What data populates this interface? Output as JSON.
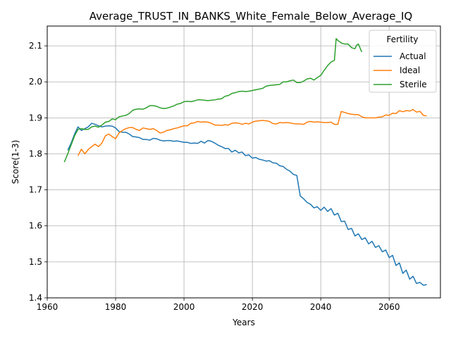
{
  "chart_data": {
    "type": "line",
    "title": "Average_TRUST_IN_BANKS_White_Female_Below_Average_IQ",
    "xlabel": "Years",
    "ylabel": "Score(1-3)",
    "xlim": [
      1960,
      2075
    ],
    "ylim": [
      1.4,
      2.155
    ],
    "xticks": [
      1960,
      1980,
      2000,
      2020,
      2040,
      2060
    ],
    "yticks": [
      1.4,
      1.5,
      1.6,
      1.7,
      1.8,
      1.9,
      2.0,
      2.1
    ],
    "xtick_labels": [
      "1960",
      "1980",
      "2000",
      "2020",
      "2040",
      "2060"
    ],
    "ytick_labels": [
      "1.4",
      "1.5",
      "1.6",
      "1.7",
      "1.8",
      "1.9",
      "2.0",
      "2.1"
    ],
    "grid": true,
    "legend": {
      "title": "Fertility",
      "position": "top-right"
    },
    "series": [
      {
        "name": "Actual",
        "color": "#1f77b4",
        "points": [
          [
            1966,
            1.81
          ],
          [
            1967,
            1.83
          ],
          [
            1968,
            1.855
          ],
          [
            1969,
            1.875
          ],
          [
            1970,
            1.865
          ],
          [
            1971,
            1.87
          ],
          [
            1972,
            1.875
          ],
          [
            1973,
            1.885
          ],
          [
            1974,
            1.882
          ],
          [
            1975,
            1.878
          ],
          [
            1976,
            1.875
          ],
          [
            1977,
            1.877
          ],
          [
            1978,
            1.878
          ],
          [
            1979,
            1.877
          ],
          [
            1980,
            1.872
          ],
          [
            1981,
            1.862
          ],
          [
            1982,
            1.86
          ],
          [
            1983,
            1.86
          ],
          [
            1984,
            1.855
          ],
          [
            1985,
            1.848
          ],
          [
            1986,
            1.847
          ],
          [
            1987,
            1.845
          ],
          [
            1988,
            1.84
          ],
          [
            1989,
            1.84
          ],
          [
            1990,
            1.838
          ],
          [
            1991,
            1.843
          ],
          [
            1992,
            1.842
          ],
          [
            1993,
            1.838
          ],
          [
            1994,
            1.836
          ],
          [
            1995,
            1.837
          ],
          [
            1996,
            1.837
          ],
          [
            1997,
            1.835
          ],
          [
            1998,
            1.836
          ],
          [
            1999,
            1.834
          ],
          [
            2000,
            1.832
          ],
          [
            2001,
            1.832
          ],
          [
            2002,
            1.829
          ],
          [
            2003,
            1.83
          ],
          [
            2004,
            1.829
          ],
          [
            2005,
            1.835
          ],
          [
            2006,
            1.83
          ],
          [
            2007,
            1.837
          ],
          [
            2008,
            1.835
          ],
          [
            2009,
            1.83
          ],
          [
            2010,
            1.824
          ],
          [
            2011,
            1.82
          ],
          [
            2012,
            1.815
          ],
          [
            2013,
            1.815
          ],
          [
            2014,
            1.805
          ],
          [
            2015,
            1.81
          ],
          [
            2016,
            1.803
          ],
          [
            2017,
            1.805
          ],
          [
            2018,
            1.795
          ],
          [
            2019,
            1.797
          ],
          [
            2020,
            1.788
          ],
          [
            2021,
            1.79
          ],
          [
            2022,
            1.785
          ],
          [
            2023,
            1.783
          ],
          [
            2024,
            1.78
          ],
          [
            2025,
            1.781
          ],
          [
            2026,
            1.775
          ],
          [
            2027,
            1.774
          ],
          [
            2028,
            1.767
          ],
          [
            2029,
            1.765
          ],
          [
            2030,
            1.757
          ],
          [
            2031,
            1.752
          ],
          [
            2032,
            1.743
          ],
          [
            2033,
            1.74
          ],
          [
            2034,
            1.683
          ],
          [
            2035,
            1.675
          ],
          [
            2036,
            1.665
          ],
          [
            2037,
            1.66
          ],
          [
            2038,
            1.65
          ],
          [
            2039,
            1.653
          ],
          [
            2040,
            1.643
          ],
          [
            2041,
            1.652
          ],
          [
            2042,
            1.64
          ],
          [
            2043,
            1.648
          ],
          [
            2044,
            1.63
          ],
          [
            2045,
            1.635
          ],
          [
            2046,
            1.612
          ],
          [
            2047,
            1.613
          ],
          [
            2048,
            1.59
          ],
          [
            2049,
            1.593
          ],
          [
            2050,
            1.572
          ],
          [
            2051,
            1.578
          ],
          [
            2052,
            1.562
          ],
          [
            2053,
            1.567
          ],
          [
            2054,
            1.55
          ],
          [
            2055,
            1.557
          ],
          [
            2056,
            1.54
          ],
          [
            2057,
            1.545
          ],
          [
            2058,
            1.528
          ],
          [
            2059,
            1.533
          ],
          [
            2060,
            1.512
          ],
          [
            2061,
            1.518
          ],
          [
            2062,
            1.49
          ],
          [
            2063,
            1.497
          ],
          [
            2064,
            1.468
          ],
          [
            2065,
            1.477
          ],
          [
            2066,
            1.452
          ],
          [
            2067,
            1.46
          ],
          [
            2068,
            1.44
          ],
          [
            2069,
            1.443
          ],
          [
            2070,
            1.435
          ],
          [
            2071,
            1.437
          ]
        ]
      },
      {
        "name": "Ideal",
        "color": "#ff7f0e",
        "points": [
          [
            1969,
            1.795
          ],
          [
            1970,
            1.813
          ],
          [
            1971,
            1.8
          ],
          [
            1972,
            1.812
          ],
          [
            1973,
            1.82
          ],
          [
            1974,
            1.827
          ],
          [
            1975,
            1.82
          ],
          [
            1976,
            1.83
          ],
          [
            1977,
            1.85
          ],
          [
            1978,
            1.855
          ],
          [
            1979,
            1.848
          ],
          [
            1980,
            1.842
          ],
          [
            1981,
            1.858
          ],
          [
            1982,
            1.865
          ],
          [
            1983,
            1.87
          ],
          [
            1984,
            1.873
          ],
          [
            1985,
            1.873
          ],
          [
            1986,
            1.868
          ],
          [
            1987,
            1.865
          ],
          [
            1988,
            1.872
          ],
          [
            1989,
            1.87
          ],
          [
            1990,
            1.868
          ],
          [
            1991,
            1.87
          ],
          [
            1992,
            1.865
          ],
          [
            1993,
            1.858
          ],
          [
            1994,
            1.86
          ],
          [
            1995,
            1.865
          ],
          [
            1996,
            1.867
          ],
          [
            1997,
            1.87
          ],
          [
            1998,
            1.872
          ],
          [
            1999,
            1.875
          ],
          [
            2000,
            1.878
          ],
          [
            2001,
            1.878
          ],
          [
            2002,
            1.885
          ],
          [
            2003,
            1.886
          ],
          [
            2004,
            1.89
          ],
          [
            2005,
            1.888
          ],
          [
            2006,
            1.889
          ],
          [
            2007,
            1.888
          ],
          [
            2008,
            1.885
          ],
          [
            2009,
            1.88
          ],
          [
            2010,
            1.88
          ],
          [
            2011,
            1.879
          ],
          [
            2012,
            1.881
          ],
          [
            2013,
            1.88
          ],
          [
            2014,
            1.885
          ],
          [
            2015,
            1.886
          ],
          [
            2016,
            1.885
          ],
          [
            2017,
            1.882
          ],
          [
            2018,
            1.885
          ],
          [
            2019,
            1.883
          ],
          [
            2020,
            1.888
          ],
          [
            2021,
            1.891
          ],
          [
            2022,
            1.892
          ],
          [
            2023,
            1.893
          ],
          [
            2024,
            1.892
          ],
          [
            2025,
            1.89
          ],
          [
            2026,
            1.884
          ],
          [
            2027,
            1.883
          ],
          [
            2028,
            1.887
          ],
          [
            2029,
            1.886
          ],
          [
            2030,
            1.887
          ],
          [
            2031,
            1.886
          ],
          [
            2032,
            1.884
          ],
          [
            2033,
            1.883
          ],
          [
            2034,
            1.883
          ],
          [
            2035,
            1.882
          ],
          [
            2036,
            1.888
          ],
          [
            2037,
            1.89
          ],
          [
            2038,
            1.888
          ],
          [
            2039,
            1.889
          ],
          [
            2040,
            1.888
          ],
          [
            2041,
            1.887
          ],
          [
            2042,
            1.887
          ],
          [
            2043,
            1.888
          ],
          [
            2044,
            1.882
          ],
          [
            2045,
            1.882
          ],
          [
            2046,
            1.918
          ],
          [
            2047,
            1.915
          ],
          [
            2048,
            1.912
          ],
          [
            2049,
            1.91
          ],
          [
            2050,
            1.909
          ],
          [
            2051,
            1.909
          ],
          [
            2052,
            1.903
          ],
          [
            2053,
            1.9
          ],
          [
            2054,
            1.9
          ],
          [
            2055,
            1.9
          ],
          [
            2056,
            1.9
          ],
          [
            2057,
            1.902
          ],
          [
            2058,
            1.903
          ],
          [
            2059,
            1.908
          ],
          [
            2060,
            1.907
          ],
          [
            2061,
            1.913
          ],
          [
            2062,
            1.912
          ],
          [
            2063,
            1.92
          ],
          [
            2064,
            1.917
          ],
          [
            2065,
            1.92
          ],
          [
            2066,
            1.919
          ],
          [
            2067,
            1.923
          ],
          [
            2068,
            1.916
          ],
          [
            2069,
            1.918
          ],
          [
            2070,
            1.907
          ],
          [
            2071,
            1.905
          ]
        ]
      },
      {
        "name": "Sterile",
        "color": "#2ca02c",
        "points": [
          [
            1965,
            1.777
          ],
          [
            1966,
            1.8
          ],
          [
            1967,
            1.825
          ],
          [
            1968,
            1.85
          ],
          [
            1969,
            1.868
          ],
          [
            1970,
            1.87
          ],
          [
            1971,
            1.868
          ],
          [
            1972,
            1.868
          ],
          [
            1973,
            1.875
          ],
          [
            1974,
            1.877
          ],
          [
            1975,
            1.874
          ],
          [
            1976,
            1.88
          ],
          [
            1977,
            1.888
          ],
          [
            1978,
            1.89
          ],
          [
            1979,
            1.897
          ],
          [
            1980,
            1.895
          ],
          [
            1981,
            1.903
          ],
          [
            1982,
            1.905
          ],
          [
            1983,
            1.907
          ],
          [
            1984,
            1.912
          ],
          [
            1985,
            1.921
          ],
          [
            1986,
            1.924
          ],
          [
            1987,
            1.925
          ],
          [
            1988,
            1.924
          ],
          [
            1989,
            1.928
          ],
          [
            1990,
            1.934
          ],
          [
            1991,
            1.934
          ],
          [
            1992,
            1.932
          ],
          [
            1993,
            1.928
          ],
          [
            1994,
            1.926
          ],
          [
            1995,
            1.927
          ],
          [
            1996,
            1.93
          ],
          [
            1997,
            1.933
          ],
          [
            1998,
            1.938
          ],
          [
            1999,
            1.94
          ],
          [
            2000,
            1.945
          ],
          [
            2001,
            1.946
          ],
          [
            2002,
            1.945
          ],
          [
            2003,
            1.947
          ],
          [
            2004,
            1.95
          ],
          [
            2005,
            1.95
          ],
          [
            2006,
            1.949
          ],
          [
            2007,
            1.948
          ],
          [
            2008,
            1.949
          ],
          [
            2009,
            1.95
          ],
          [
            2010,
            1.952
          ],
          [
            2011,
            1.953
          ],
          [
            2012,
            1.96
          ],
          [
            2013,
            1.962
          ],
          [
            2014,
            1.968
          ],
          [
            2015,
            1.97
          ],
          [
            2016,
            1.973
          ],
          [
            2017,
            1.974
          ],
          [
            2018,
            1.973
          ],
          [
            2019,
            1.974
          ],
          [
            2020,
            1.976
          ],
          [
            2021,
            1.978
          ],
          [
            2022,
            1.98
          ],
          [
            2023,
            1.982
          ],
          [
            2024,
            1.988
          ],
          [
            2025,
            1.99
          ],
          [
            2026,
            1.991
          ],
          [
            2027,
            1.992
          ],
          [
            2028,
            1.993
          ],
          [
            2029,
            2.0
          ],
          [
            2030,
            2.0
          ],
          [
            2031,
            2.003
          ],
          [
            2032,
            2.005
          ],
          [
            2033,
            1.998
          ],
          [
            2034,
            1.998
          ],
          [
            2035,
            2.002
          ],
          [
            2036,
            2.008
          ],
          [
            2037,
            2.01
          ],
          [
            2038,
            2.005
          ],
          [
            2039,
            2.012
          ],
          [
            2040,
            2.018
          ],
          [
            2041,
            2.032
          ],
          [
            2042,
            2.045
          ],
          [
            2043,
            2.055
          ],
          [
            2044,
            2.06
          ],
          [
            2044.5,
            2.12
          ],
          [
            2045,
            2.115
          ],
          [
            2046,
            2.108
          ],
          [
            2047,
            2.105
          ],
          [
            2048,
            2.105
          ],
          [
            2049,
            2.095
          ],
          [
            2050,
            2.092
          ],
          [
            2050.5,
            2.102
          ],
          [
            2051,
            2.105
          ],
          [
            2052,
            2.083
          ]
        ]
      }
    ]
  }
}
